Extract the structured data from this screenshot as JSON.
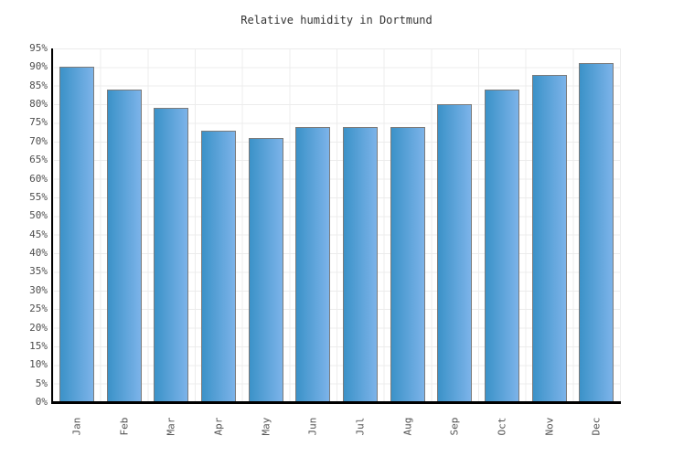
{
  "chart_data": {
    "type": "bar",
    "title": "Relative humidity in Dortmund",
    "categories": [
      "Jan",
      "Feb",
      "Mar",
      "Apr",
      "May",
      "Jun",
      "Jul",
      "Aug",
      "Sep",
      "Oct",
      "Nov",
      "Dec"
    ],
    "values": [
      90,
      84,
      79,
      73,
      71,
      74,
      74,
      74,
      80,
      84,
      88,
      91
    ],
    "unit": "%",
    "xlabel": "",
    "ylabel": "",
    "ylim": [
      0,
      95
    ],
    "ytick_step": 5,
    "y_tick_labels": [
      "95%",
      "90%",
      "85%",
      "80%",
      "75%",
      "70%",
      "65%",
      "60%",
      "55%",
      "50%",
      "45%",
      "40%",
      "35%",
      "30%",
      "25%",
      "20%",
      "15%",
      "10%",
      "5%",
      "0%"
    ],
    "grid": "on",
    "legend": "none",
    "colors": {
      "bar_gradient_left": "#3b92c8",
      "bar_gradient_right": "#7cb3e9",
      "bar_border": "#7b7b7b",
      "gridline": "#ececec",
      "axis_line": "#000000",
      "tick_label": "#4d4d4d",
      "title": "#333333",
      "background": "#ffffff"
    }
  }
}
